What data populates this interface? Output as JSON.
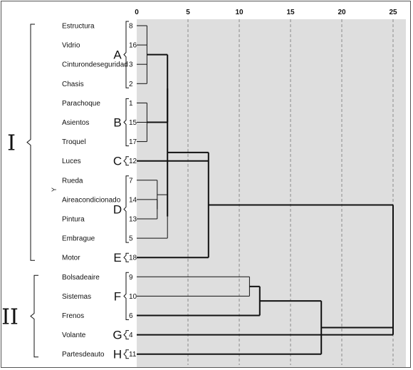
{
  "axis": {
    "ticks": [
      "0",
      "5",
      "10",
      "15",
      "20",
      "25"
    ],
    "y_label": "Y"
  },
  "leaves": [
    {
      "name": "Estructura",
      "id": "8"
    },
    {
      "name": "Vidrio",
      "id": "16"
    },
    {
      "name": "Cinturondeseguridad",
      "id": "3"
    },
    {
      "name": "Chasis",
      "id": "2"
    },
    {
      "name": "Parachoque",
      "id": "1"
    },
    {
      "name": "Asientos",
      "id": "15"
    },
    {
      "name": "Troquel",
      "id": "17"
    },
    {
      "name": "Luces",
      "id": "12"
    },
    {
      "name": "Rueda",
      "id": "7"
    },
    {
      "name": "Aireacondicionado",
      "id": "14"
    },
    {
      "name": "Pintura",
      "id": "13"
    },
    {
      "name": "Embrague",
      "id": "5"
    },
    {
      "name": "Motor",
      "id": "18"
    },
    {
      "name": "Bolsadeaire",
      "id": "9"
    },
    {
      "name": "Sistemas",
      "id": "10"
    },
    {
      "name": "Frenos",
      "id": "6"
    },
    {
      "name": "Volante",
      "id": "4"
    },
    {
      "name": "Partesdeauto",
      "id": "11"
    }
  ],
  "groups": [
    {
      "label": "A",
      "first": 0,
      "last": 3
    },
    {
      "label": "B",
      "first": 4,
      "last": 6
    },
    {
      "label": "C",
      "first": 7,
      "last": 7
    },
    {
      "label": "D",
      "first": 8,
      "last": 11
    },
    {
      "label": "E",
      "first": 12,
      "last": 12
    },
    {
      "label": "F",
      "first": 13,
      "last": 15
    },
    {
      "label": "G",
      "first": 16,
      "last": 16
    },
    {
      "label": "H",
      "first": 17,
      "last": 17
    }
  ],
  "supergroups": [
    {
      "label": "I",
      "first": 0,
      "last": 12
    },
    {
      "label": "II",
      "first": 13,
      "last": 17
    }
  ],
  "colors": {
    "plot_bg": "#dedede",
    "grid": "#8a8a8a",
    "line": "#111111"
  }
}
